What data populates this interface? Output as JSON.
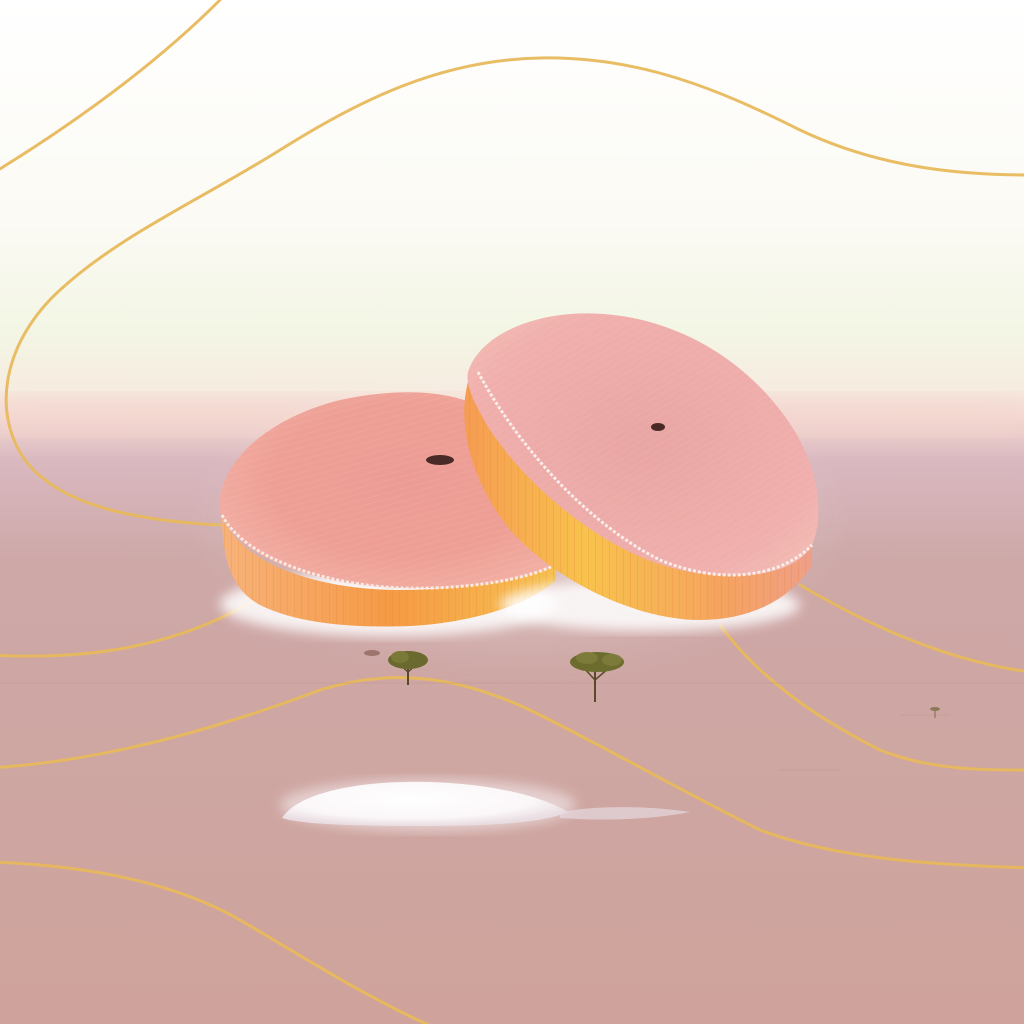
{
  "scene": {
    "palette": {
      "sky_top": "#ffffff",
      "sky_mid": "#f4f6e6",
      "horizon_glow": "#f6d8cf",
      "ground_far": "#cda6a6",
      "ground_near": "#cfa49b",
      "gold_line": "#e8b85a",
      "disc_top_light": "#f2b3a8",
      "disc_top_dark": "#e07c74",
      "disc_side_orange": "#f5a24a",
      "disc_side_yellow": "#f7c450",
      "tree": "#6b6a2e",
      "reflection": "#ffffff"
    },
    "objects": [
      "left-cushion-disc",
      "right-cushion-disc",
      "small-tree-left",
      "small-tree-right",
      "white-puddle",
      "golden-flow-lines"
    ]
  }
}
